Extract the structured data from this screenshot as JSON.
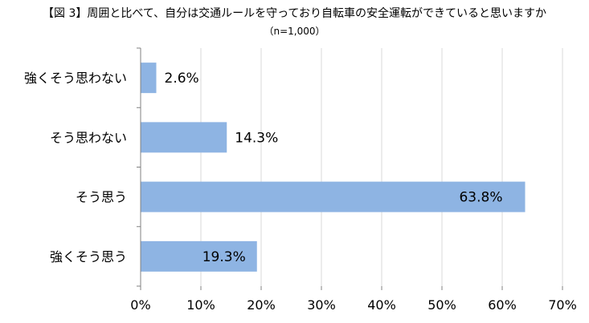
{
  "chart_data": {
    "type": "bar",
    "orientation": "horizontal",
    "title": "【図 3】周囲と比べて、自分は交通ルールを守っており自転車の安全運転ができていると思いますか",
    "subtitle": "（n=1,000）",
    "categories": [
      "強くそう思わない",
      "そう思わない",
      "そう思う",
      "強くそう思う"
    ],
    "values": [
      2.6,
      14.3,
      63.8,
      19.3
    ],
    "data_labels": [
      "2.6%",
      "14.3%",
      "63.8%",
      "19.3%"
    ],
    "xlim": [
      0,
      70
    ],
    "x_ticks": [
      "0%",
      "10%",
      "20%",
      "30%",
      "40%",
      "50%",
      "60%",
      "70%"
    ],
    "grid": "vertical",
    "legend": "none",
    "bar_color": "#8EB4E3",
    "grid_color": "#D9D9D9"
  }
}
